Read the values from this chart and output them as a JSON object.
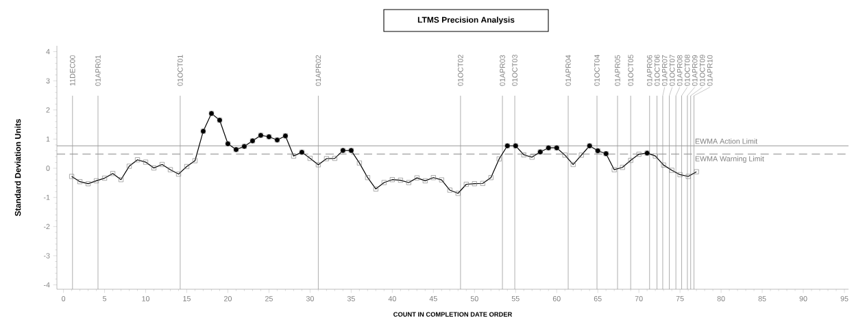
{
  "chart_data": {
    "type": "line",
    "title": "LTMS Precision Analysis",
    "xlabel": "COUNT IN COMPLETION DATE ORDER",
    "ylabel": "Standard Deviation Units",
    "xlim": [
      -0.8,
      95.5
    ],
    "ylim": [
      -4.15,
      4.2
    ],
    "xticks": [
      0,
      5,
      10,
      15,
      20,
      25,
      30,
      35,
      40,
      45,
      50,
      55,
      60,
      65,
      70,
      75,
      80,
      85,
      90,
      95
    ],
    "yticks": [
      -4,
      -3,
      -2,
      -1,
      0,
      1,
      2,
      3,
      4
    ],
    "series": [
      {
        "type": "line",
        "color": "#000000",
        "marker": "square",
        "x": [
          1,
          2,
          3,
          4,
          5,
          6,
          7,
          8,
          9,
          10,
          11,
          12,
          13,
          14,
          15,
          16,
          17,
          18,
          19,
          20,
          21,
          22,
          23,
          24,
          25,
          26,
          27,
          28,
          29,
          30,
          31,
          32,
          33,
          34,
          35,
          36,
          37,
          38,
          39,
          40,
          41,
          42,
          43,
          44,
          45,
          46,
          47,
          48,
          49,
          50,
          51,
          52,
          53,
          54,
          55,
          56,
          57,
          58,
          59,
          60,
          61,
          62,
          63,
          64,
          65,
          66,
          67,
          68,
          69,
          70,
          71,
          72,
          73,
          74,
          75,
          76,
          77
        ],
        "values": [
          -0.28,
          -0.46,
          -0.53,
          -0.43,
          -0.34,
          -0.18,
          -0.39,
          0.07,
          0.29,
          0.21,
          0.01,
          0.13,
          -0.05,
          -0.2,
          0.06,
          0.26,
          1.27,
          1.88,
          1.65,
          0.84,
          0.64,
          0.75,
          0.94,
          1.13,
          1.08,
          0.97,
          1.11,
          0.42,
          0.55,
          0.34,
          0.12,
          0.33,
          0.34,
          0.61,
          0.61,
          0.18,
          -0.32,
          -0.71,
          -0.49,
          -0.39,
          -0.41,
          -0.49,
          -0.33,
          -0.43,
          -0.32,
          -0.4,
          -0.75,
          -0.86,
          -0.55,
          -0.53,
          -0.52,
          -0.32,
          0.32,
          0.77,
          0.77,
          0.46,
          0.38,
          0.56,
          0.7,
          0.7,
          0.45,
          0.13,
          0.45,
          0.77,
          0.6,
          0.5,
          -0.05,
          0.03,
          0.27,
          0.48,
          0.52,
          0.42,
          0.11,
          -0.07,
          -0.22,
          -0.28,
          -0.12
        ]
      },
      {
        "type": "scatter",
        "color": "#000000",
        "marker": "circle",
        "x": [
          17,
          18,
          19,
          20,
          21,
          22,
          23,
          24,
          25,
          26,
          27,
          29,
          34,
          35,
          54,
          55,
          58,
          59,
          60,
          64,
          65,
          66,
          71
        ],
        "values": [
          1.27,
          1.88,
          1.65,
          0.84,
          0.64,
          0.75,
          0.94,
          1.13,
          1.08,
          0.97,
          1.11,
          0.55,
          0.61,
          0.61,
          0.77,
          0.77,
          0.56,
          0.7,
          0.7,
          0.77,
          0.6,
          0.5,
          0.52
        ]
      }
    ],
    "ref_lines": [
      {
        "axis": "y",
        "value": 0.77,
        "label": "EWMA Action Limit",
        "color": "#999999",
        "line_style": "solid"
      },
      {
        "axis": "y",
        "value": 0.49,
        "label": "EWMA Warning Limit",
        "color": "#888888",
        "line_style": "dashed"
      },
      {
        "axis": "x",
        "value": 1.1,
        "label": "11DEC00",
        "color": "#999999"
      },
      {
        "axis": "x",
        "value": 4.2,
        "label": "01APR01",
        "color": "#999999"
      },
      {
        "axis": "x",
        "value": 14.2,
        "label": "01OCT01",
        "color": "#999999"
      },
      {
        "axis": "x",
        "value": 31.0,
        "label": "01APR02",
        "color": "#999999"
      },
      {
        "axis": "x",
        "value": 48.3,
        "label": "01OCT02",
        "color": "#999999"
      },
      {
        "axis": "x",
        "value": 53.4,
        "label": "01APR03",
        "color": "#999999"
      },
      {
        "axis": "x",
        "value": 54.9,
        "label": "01OCT03",
        "color": "#999999"
      },
      {
        "axis": "x",
        "value": 61.4,
        "label": "01APR04",
        "color": "#999999"
      },
      {
        "axis": "x",
        "value": 64.9,
        "label": "01OCT04",
        "color": "#999999"
      },
      {
        "axis": "x",
        "value": 67.4,
        "label": "01APR05",
        "color": "#999999"
      },
      {
        "axis": "x",
        "value": 69.0,
        "label": "01OCT05",
        "color": "#999999"
      },
      {
        "axis": "x",
        "value": 71.3,
        "label": "01APR06",
        "color": "#999999"
      },
      {
        "axis": "x",
        "value": 72.2,
        "label": "01OCT06",
        "color": "#999999"
      },
      {
        "axis": "x",
        "value": 72.9,
        "label": "01APR07",
        "color": "#999999"
      },
      {
        "axis": "x",
        "value": 73.7,
        "label": "01OCT07",
        "color": "#999999"
      },
      {
        "axis": "x",
        "value": 74.5,
        "label": "01APR08",
        "color": "#999999"
      },
      {
        "axis": "x",
        "value": 75.2,
        "label": "01OCT08",
        "color": "#999999"
      },
      {
        "axis": "x",
        "value": 75.9,
        "label": "01APR09",
        "color": "#999999"
      },
      {
        "axis": "x",
        "value": 76.3,
        "label": "01OCT09",
        "color": "#999999"
      },
      {
        "axis": "x",
        "value": 76.7,
        "label": "01APR10",
        "color": "#999999"
      }
    ]
  }
}
